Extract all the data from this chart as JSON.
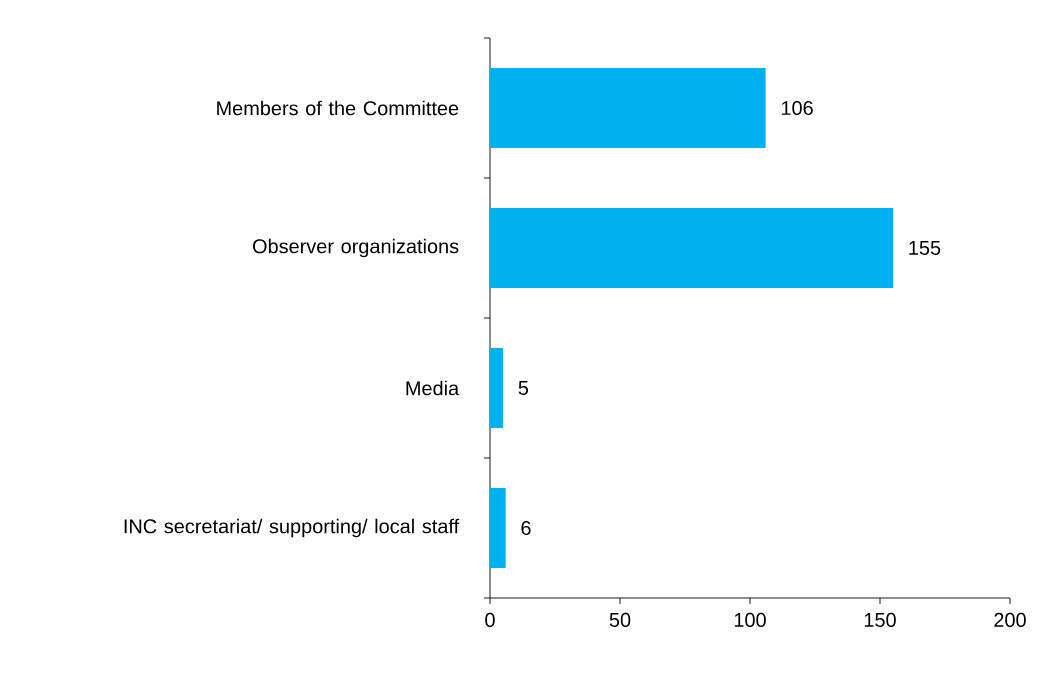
{
  "chart_data": {
    "type": "bar",
    "orientation": "horizontal",
    "categories": [
      "Members of the Committee",
      "Observer organizations",
      "Media",
      "INC secretariat/ supporting/ local staff"
    ],
    "values": [
      106,
      155,
      5,
      6
    ],
    "color": "#00b0f0",
    "xlim": [
      0,
      200
    ],
    "xticks": [
      0,
      50,
      100,
      150,
      200
    ],
    "data_labels": true
  }
}
